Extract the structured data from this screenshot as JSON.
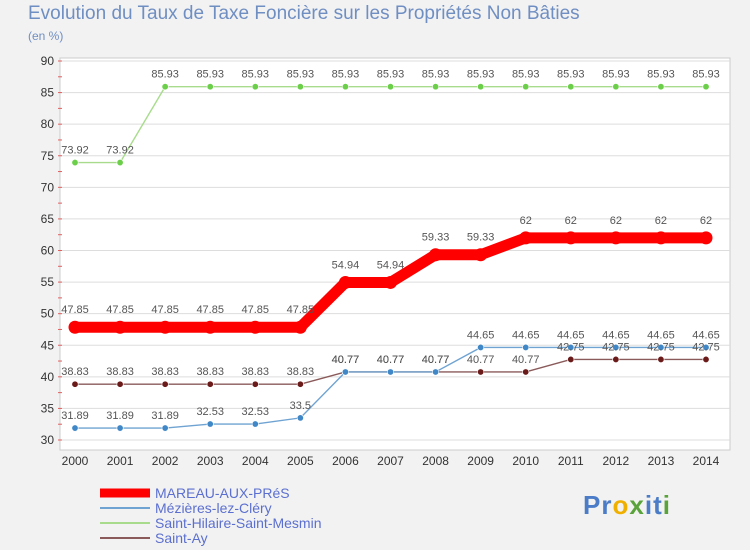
{
  "title": "Evolution du Taux de Taxe Foncière sur les Propriétés Non Bâties",
  "unit_label": "(en %)",
  "brand": "Proxiti",
  "chart_data": {
    "type": "line",
    "title": "Evolution du Taux de Taxe Foncière sur les Propriétés Non Bâties",
    "ylabel": "(en %)",
    "xlabel": "",
    "x": [
      "2000",
      "2001",
      "2002",
      "2003",
      "2004",
      "2005",
      "2006",
      "2007",
      "2008",
      "2009",
      "2010",
      "2011",
      "2012",
      "2013",
      "2014"
    ],
    "ylim": [
      30,
      90
    ],
    "yticks": [
      30,
      35,
      40,
      45,
      50,
      55,
      60,
      65,
      70,
      75,
      80,
      85,
      90
    ],
    "grid": "horizontal",
    "legend_position": "bottom",
    "series": [
      {
        "name": "MAREAU-AUX-PRéS",
        "color": "#ff0000",
        "emphasis": true,
        "values": [
          47.85,
          47.85,
          47.85,
          47.85,
          47.85,
          47.85,
          54.94,
          54.94,
          59.33,
          59.33,
          62,
          62,
          62,
          62,
          62
        ],
        "labels": [
          "47.85",
          "47.85",
          "47.85",
          "47.85",
          "47.85",
          "47.85",
          "54.94",
          "54.94",
          "59.33",
          "59.33",
          "62",
          "62",
          "62",
          "62",
          "62"
        ]
      },
      {
        "name": "Mézières-lez-Cléry",
        "color": "#6fa3d2",
        "marker": "#3f87c6",
        "values": [
          31.89,
          31.89,
          31.89,
          32.53,
          32.53,
          33.5,
          40.77,
          40.77,
          40.77,
          44.65,
          44.65,
          44.65,
          44.65,
          44.65,
          44.65
        ],
        "labels": [
          "31.89",
          "31.89",
          "31.89",
          "32.53",
          "32.53",
          "33.5",
          "40.77",
          "40.77",
          "40.77",
          "44.65",
          "44.65",
          "44.65",
          "44.65",
          "44.65",
          "44.65"
        ]
      },
      {
        "name": "Saint-Hilaire-Saint-Mesmin",
        "color": "#a8dc8c",
        "marker": "#6ccf4a",
        "values": [
          73.92,
          73.92,
          85.93,
          85.93,
          85.93,
          85.93,
          85.93,
          85.93,
          85.93,
          85.93,
          85.93,
          85.93,
          85.93,
          85.93,
          85.93
        ],
        "labels": [
          "73.92",
          "73.92",
          "85.93",
          "85.93",
          "85.93",
          "85.93",
          "85.93",
          "85.93",
          "85.93",
          "85.93",
          "85.93",
          "85.93",
          "85.93",
          "85.93",
          "85.93"
        ]
      },
      {
        "name": "Saint-Ay",
        "color": "#8a5a5a",
        "marker": "#6b1a1a",
        "values": [
          38.83,
          38.83,
          38.83,
          38.83,
          38.83,
          38.83,
          40.77,
          40.77,
          40.77,
          40.77,
          40.77,
          42.75,
          42.75,
          42.75,
          42.75
        ],
        "labels": [
          "38.83",
          "38.83",
          "38.83",
          "38.83",
          "38.83",
          "38.83",
          "40.77",
          "40.77",
          "40.77",
          "40.77",
          "40.77",
          "42.75",
          "42.75",
          "42.75",
          "42.75"
        ]
      }
    ]
  }
}
